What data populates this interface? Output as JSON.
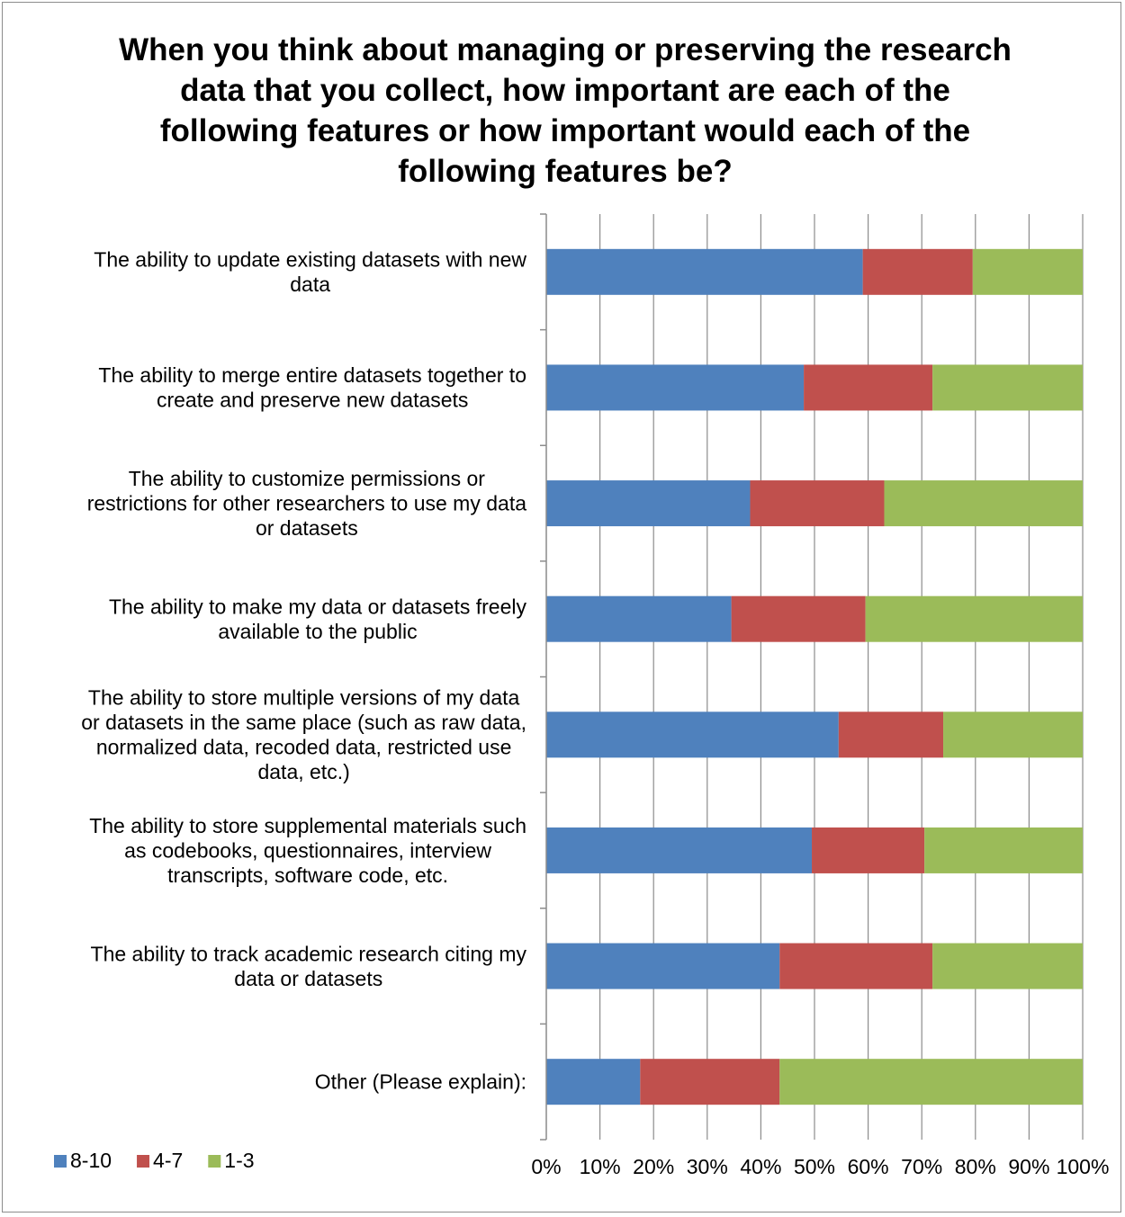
{
  "chart_data": {
    "type": "bar",
    "orientation": "horizontal",
    "stacked": "100%",
    "title": "When you think about managing or preserving the research data that you collect, how important are each of the following features or how important would each of the following features be?",
    "categories": [
      [
        "The ability to update existing datasets with new",
        "data"
      ],
      [
        "The ability to merge entire datasets together to",
        "create and preserve new datasets"
      ],
      [
        "The ability to customize permissions or",
        "restrictions for other researchers to use my data",
        "or datasets"
      ],
      [
        "The ability to make my data or datasets freely",
        "available to the public"
      ],
      [
        "The ability to store multiple versions of my data",
        "or datasets in the same place (such as raw data,",
        "normalized data, recoded data, restricted use",
        "data, etc.)"
      ],
      [
        "The ability to store supplemental materials such",
        "as codebooks, questionnaires, interview",
        "transcripts, software code, etc."
      ],
      [
        "The ability to track academic research citing my",
        "data or datasets"
      ],
      [
        "Other (Please explain):"
      ]
    ],
    "series": [
      {
        "name": "8-10",
        "color": "#4f81bd",
        "values": [
          59,
          48,
          38,
          34.5,
          54.5,
          49.5,
          43.5,
          17.5
        ]
      },
      {
        "name": "4-7",
        "color": "#c0504d",
        "values": [
          20.5,
          24,
          25,
          25,
          19.5,
          21,
          28.5,
          26
        ]
      },
      {
        "name": "1-3",
        "color": "#9bbb59",
        "values": [
          20.5,
          28,
          37,
          40.5,
          26,
          29.5,
          28,
          56.5
        ]
      }
    ],
    "x_ticks": [
      "0%",
      "10%",
      "20%",
      "30%",
      "40%",
      "50%",
      "60%",
      "70%",
      "80%",
      "90%",
      "100%"
    ],
    "xlim": [
      0,
      100
    ],
    "grid": "vertical",
    "legend_position": "bottom-left"
  }
}
